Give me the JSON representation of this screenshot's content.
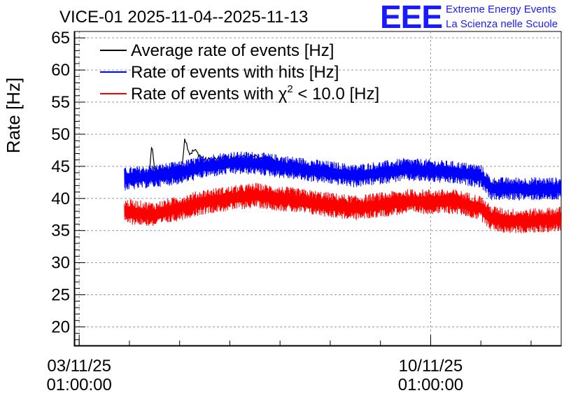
{
  "header": {
    "title": "VICE-01 2025-11-04--2025-11-13",
    "logo_text": "EEE",
    "logo_line1": "Extreme Energy Events",
    "logo_line2": "La Scienza nelle Scuole"
  },
  "chart_data": {
    "type": "line",
    "title": "VICE-01 2025-11-04--2025-11-13",
    "ylabel": "Rate [Hz]",
    "xlabel": "",
    "ylim": [
      17,
      66
    ],
    "xlim_days": [
      -0.1,
      9.6
    ],
    "yticks": [
      "20",
      "25",
      "30",
      "35",
      "40",
      "45",
      "50",
      "55",
      "60",
      "65"
    ],
    "xticks": [
      {
        "day": 0,
        "line1": "03/11/25",
        "line2": "01:00:00"
      },
      {
        "day": 7,
        "line1": "10/11/25",
        "line2": "01:00:00"
      }
    ],
    "grid": true,
    "legend_position": "top-left",
    "legend": [
      {
        "key": "avg",
        "label": "Average rate of events [Hz]",
        "color": "#000000"
      },
      {
        "key": "hits",
        "label": "Rate of events with hits [Hz]",
        "color": "#0000ff"
      },
      {
        "key": "chi2",
        "label_prefix": "Rate of events with ",
        "symbol": "χ",
        "superscript": "2",
        "label_suffix": " < 10.0 [Hz]",
        "color": "#ff0000"
      }
    ],
    "x_start_day": 0.9,
    "x_end_day": 9.6,
    "series": [
      {
        "name": "Average rate of events [Hz]",
        "color": "#000000",
        "x_days": [
          0.9,
          1.4,
          1.45,
          1.5,
          1.8,
          2.05,
          2.1,
          2.2,
          2.3,
          2.5,
          3.0,
          3.5,
          4.0,
          4.5,
          5.0,
          5.5,
          6.0,
          6.5,
          7.0,
          7.5,
          8.0,
          8.5,
          9.0,
          9.6
        ],
        "values": [
          43.3,
          44.0,
          48.5,
          44.5,
          44.5,
          45.0,
          49.5,
          47.0,
          47.5,
          46.0,
          46.2,
          46.5,
          45.5,
          45.0,
          44.3,
          43.5,
          44.5,
          45.0,
          44.5,
          44.3,
          43.0,
          42.0,
          41.5,
          41.8
        ]
      },
      {
        "name": "Rate of events with hits [Hz]",
        "color": "#0000ff",
        "x_days": [
          0.9,
          1.5,
          2.0,
          2.5,
          3.0,
          3.5,
          4.0,
          4.5,
          5.0,
          5.5,
          6.0,
          6.5,
          7.0,
          7.5,
          8.0,
          8.2,
          8.5,
          9.0,
          9.6
        ],
        "values": [
          43.0,
          43.5,
          44.0,
          45.0,
          45.5,
          45.5,
          45.0,
          44.5,
          44.0,
          43.5,
          44.0,
          44.5,
          44.3,
          44.0,
          43.5,
          41.5,
          41.5,
          41.5,
          41.5
        ],
        "noise": 1.3
      },
      {
        "name": "Rate of events with χ2 < 10.0 [Hz]",
        "color": "#ff0000",
        "x_days": [
          0.9,
          1.5,
          2.0,
          2.5,
          3.0,
          3.5,
          4.0,
          4.5,
          5.0,
          5.5,
          6.0,
          6.5,
          7.0,
          7.5,
          8.0,
          8.2,
          8.5,
          9.0,
          9.6
        ],
        "values": [
          38.0,
          37.5,
          38.5,
          39.5,
          40.0,
          40.5,
          40.0,
          39.5,
          39.0,
          38.5,
          39.0,
          39.5,
          39.5,
          39.5,
          38.5,
          37.0,
          36.5,
          36.5,
          36.8
        ],
        "noise": 1.4
      }
    ]
  }
}
